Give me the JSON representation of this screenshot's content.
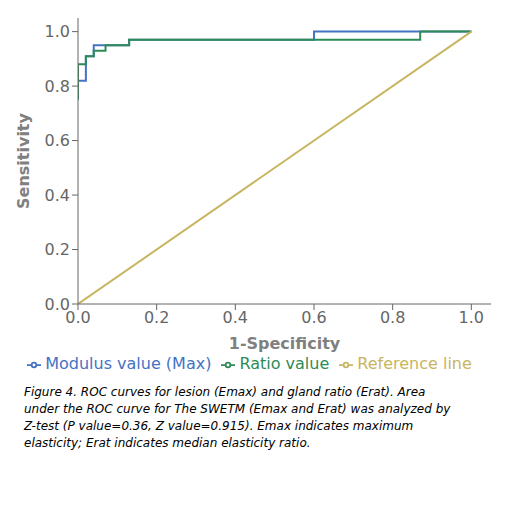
{
  "chart_data": {
    "type": "line",
    "x_label": "1-Specificity",
    "y_label": "Sensitivity",
    "xlim": [
      0.0,
      1.05
    ],
    "ylim": [
      0.0,
      1.05
    ],
    "xticks": [
      {
        "value": 0.0,
        "label": "0.0"
      },
      0.2,
      0.4,
      0.6,
      0.8,
      {
        "value": 1.0,
        "label": "1.0"
      }
    ],
    "yticks": [
      {
        "value": 0.0,
        "label": "0.0"
      },
      0.2,
      0.4,
      0.6,
      0.8,
      {
        "value": 1.0,
        "label": "1.0"
      }
    ],
    "series": [
      {
        "name": "Modulus value (Max)",
        "color": "#4472C4",
        "x": [
          0.0,
          0.02,
          0.02,
          0.04,
          0.04,
          0.13,
          0.13,
          0.6,
          0.6,
          1.0
        ],
        "values": [
          0.82,
          0.82,
          0.91,
          0.91,
          0.95,
          0.95,
          0.97,
          0.97,
          1.0,
          1.0
        ]
      },
      {
        "name": "Ratio value",
        "color": "#2E8B57",
        "x": [
          0.0,
          0.0,
          0.02,
          0.02,
          0.04,
          0.04,
          0.07,
          0.07,
          0.13,
          0.13,
          0.87,
          0.87,
          1.0
        ],
        "values": [
          0.75,
          0.88,
          0.88,
          0.91,
          0.91,
          0.93,
          0.93,
          0.95,
          0.95,
          0.97,
          0.97,
          1.0,
          1.0
        ]
      },
      {
        "name": "Reference line",
        "color": "#C8B560",
        "x": [
          0.0,
          1.0
        ],
        "values": [
          0.0,
          1.0
        ]
      }
    ],
    "annotations": [
      "Figure 4. ROC curves for lesion (Emax) and gland ratio (Erat). Area",
      "under the ROC curve for The SWETM (Emax and Erat) was analyzed by",
      "Z-test (P value=0.36, Z value=0.915). Emax indicates maximum",
      "elasticity; Erat indicates median elasticity ratio."
    ]
  }
}
